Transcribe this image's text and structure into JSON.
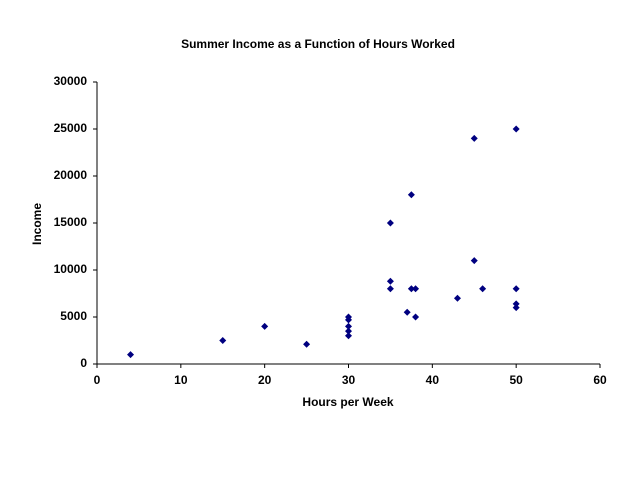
{
  "chart_data": {
    "type": "scatter",
    "title": "Summer Income as a Function of Hours Worked",
    "x_label": "Hours per Week",
    "y_label": "Income",
    "color": "#000080",
    "x": [
      4,
      15,
      20,
      25,
      30,
      30,
      30,
      30,
      30,
      35,
      35,
      35,
      37,
      37.5,
      37.5,
      38,
      38,
      43,
      45,
      45,
      46,
      50,
      50,
      50,
      50
    ],
    "values": [
      1000,
      2500,
      4000,
      2100,
      3000,
      3500,
      4000,
      4700,
      5000,
      8000,
      8800,
      15000,
      5500,
      8000,
      18000,
      8000,
      5000,
      7000,
      24000,
      11000,
      8000,
      25000,
      8000,
      6400,
      6000
    ],
    "xlim": [
      0,
      60
    ],
    "xticks": [
      0,
      10,
      20,
      30,
      40,
      50,
      60
    ],
    "ylim": [
      0,
      30000
    ],
    "yticks": [
      0,
      5000,
      10000,
      15000,
      20000,
      25000,
      30000
    ],
    "grid": false
  }
}
